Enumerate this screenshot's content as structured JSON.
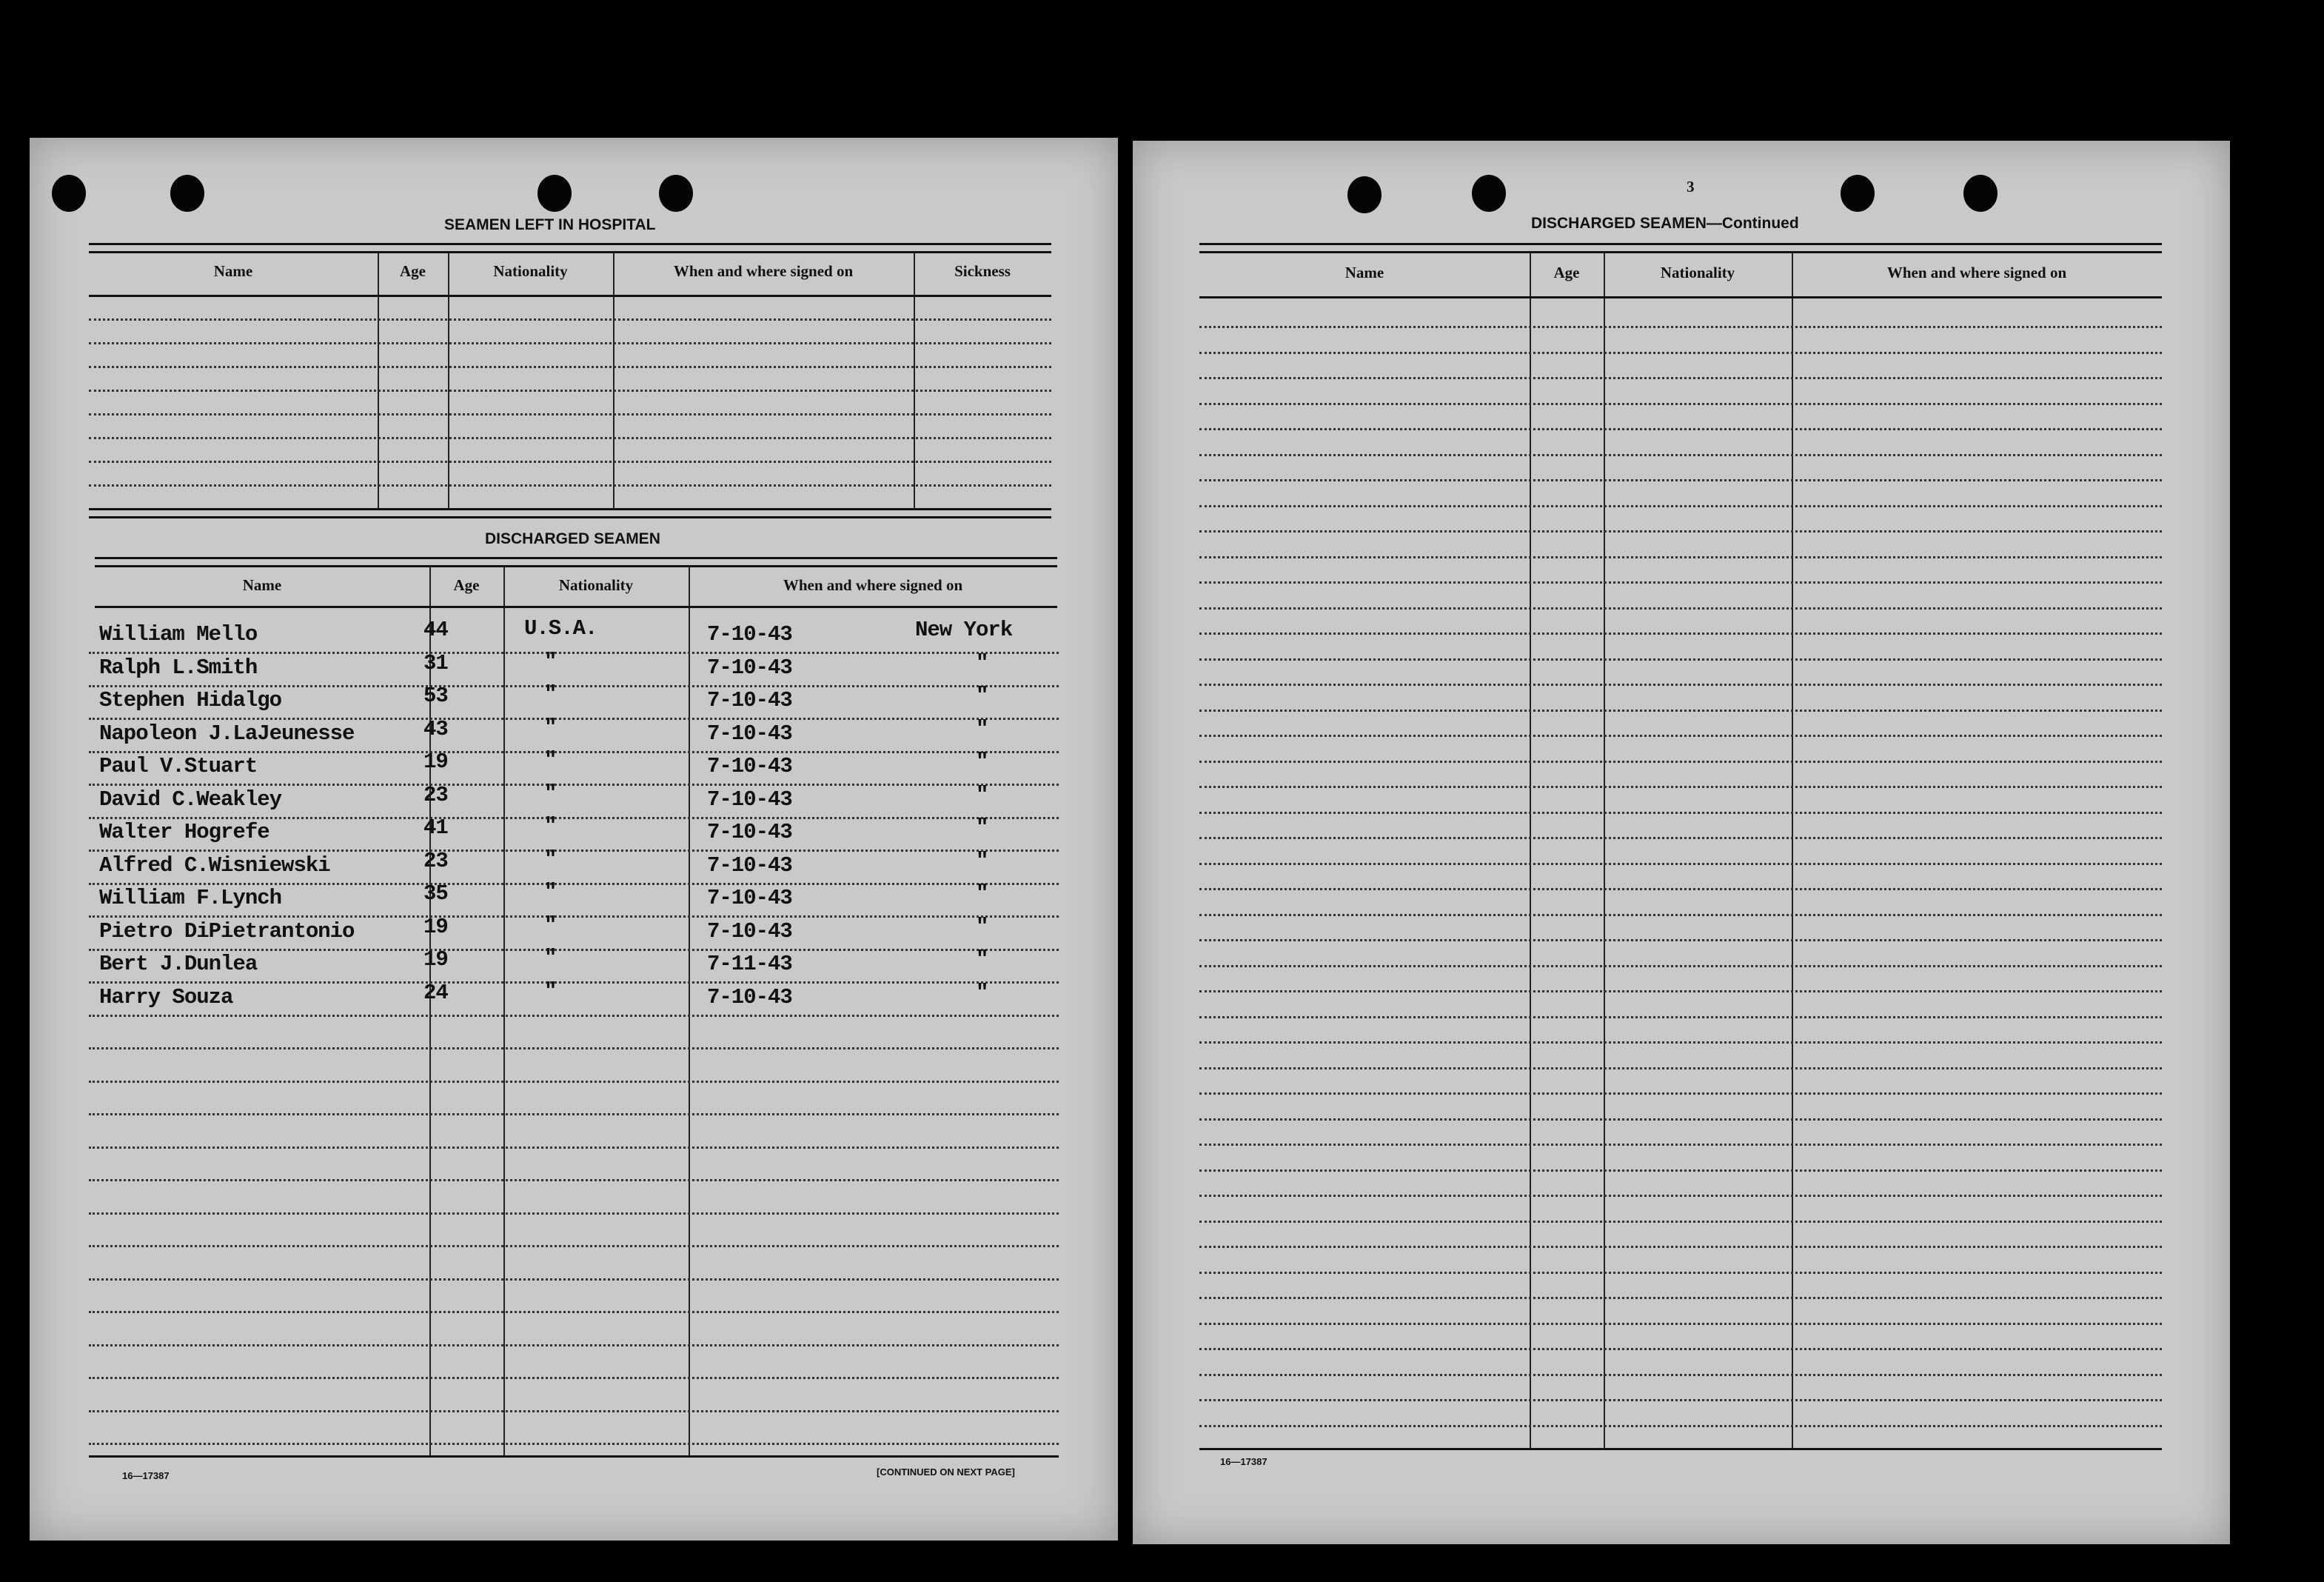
{
  "left_page": {
    "hospital": {
      "title": "SEAMEN LEFT IN HOSPITAL",
      "headers": [
        "Name",
        "Age",
        "Nationality",
        "When and where signed on",
        "Sickness"
      ]
    },
    "discharged": {
      "title": "DISCHARGED SEAMEN",
      "headers": [
        "Name",
        "Age",
        "Nationality",
        "When and where signed on"
      ],
      "rows": [
        {
          "name": "William Mello",
          "age": "44",
          "nationality": "U.S.A.",
          "date": "7-10-43",
          "place": "New York"
        },
        {
          "name": "Ralph L.Smith",
          "age": "31",
          "nationality": "\"",
          "date": "7-10-43",
          "place": "\""
        },
        {
          "name": "Stephen Hidalgo",
          "age": "53",
          "nationality": "\"",
          "date": "7-10-43",
          "place": "\""
        },
        {
          "name": "Napoleon J.LaJeunesse",
          "age": "43",
          "nationality": "\"",
          "date": "7-10-43",
          "place": "\""
        },
        {
          "name": "Paul V.Stuart",
          "age": "19",
          "nationality": "\"",
          "date": "7-10-43",
          "place": "\""
        },
        {
          "name": "David C.Weakley",
          "age": "23",
          "nationality": "\"",
          "date": "7-10-43",
          "place": "\""
        },
        {
          "name": "Walter Hogrefe",
          "age": "41",
          "nationality": "\"",
          "date": "7-10-43",
          "place": "\""
        },
        {
          "name": "Alfred C.Wisniewski",
          "age": "23",
          "nationality": "\"",
          "date": "7-10-43",
          "place": "\""
        },
        {
          "name": "William F.Lynch",
          "age": "35",
          "nationality": "\"",
          "date": "7-10-43",
          "place": "\""
        },
        {
          "name": "Pietro DiPietrantonio",
          "age": "19",
          "nationality": "\"",
          "date": "7-10-43",
          "place": "\""
        },
        {
          "name": "Bert J.Dunlea",
          "age": "19",
          "nationality": "\"",
          "date": "7-11-43",
          "place": "\""
        },
        {
          "name": "Harry Souza",
          "age": "24",
          "nationality": "\"",
          "date": "7-10-43",
          "place": "\""
        }
      ]
    },
    "form_number": "16—17387",
    "continued_note": "[CONTINUED ON NEXT PAGE]"
  },
  "right_page": {
    "page_number": "3",
    "title": "DISCHARGED SEAMEN—Continued",
    "headers": [
      "Name",
      "Age",
      "Nationality",
      "When and where signed on"
    ],
    "form_number": "16—17387"
  }
}
